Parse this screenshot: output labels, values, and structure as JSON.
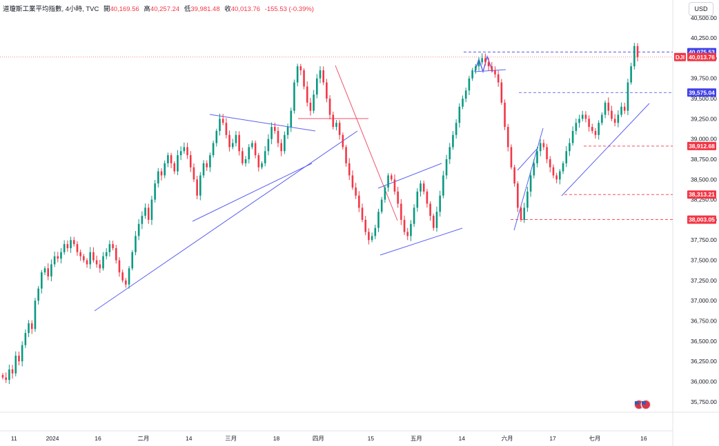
{
  "header": {
    "title": "道瓊斯工業平均指數, 4小時, TVC",
    "open_label": "開",
    "open": "40,169.56",
    "high_label": "高",
    "high": "40,257.24",
    "low_label": "低",
    "low": "39,981.48",
    "close_label": "收",
    "close": "40,013.76",
    "change": "-155.53 (-0.39%)"
  },
  "currency": "USD",
  "symbol_tag": "DJI",
  "colors": {
    "up": "#089981",
    "down": "#f23645",
    "trend_blue": "#5b5ff0",
    "trend_red": "#f2506a",
    "price_box_blue": "#4040e8",
    "price_box_red": "#f23645"
  },
  "chart_data": {
    "type": "candlestick",
    "yticks": [
      35750,
      36000,
      36250,
      36500,
      36750,
      37000,
      37250,
      37500,
      37750,
      38000,
      38250,
      38500,
      38750,
      39000,
      39250,
      39500,
      39750,
      40000,
      40250,
      40500
    ],
    "ytick_labels": [
      "35,750.00",
      "36,000.00",
      "36,250.00",
      "36,500.00",
      "36,750.00",
      "37,000.00",
      "37,250.00",
      "37,500.00",
      "37,750.00",
      "38,000.00",
      "38,250.00",
      "38,500.00",
      "38,750.00",
      "39,000.00",
      "39,250.00",
      "39,500.00",
      "39,750.00",
      "40,000.00",
      "40,250.00",
      "40,500.00"
    ],
    "ylim": [
      35620,
      40720
    ],
    "xtick_labels": [
      "11",
      "2024",
      "16",
      "二月",
      "14",
      "三月",
      "18",
      "四月",
      "15",
      "五月",
      "14",
      "六月",
      "17",
      "七月",
      "16"
    ],
    "xtick_positions": [
      0.04,
      0.15,
      0.28,
      0.41,
      0.54,
      0.66,
      0.79,
      0.91,
      1.06,
      1.19,
      1.32,
      1.45,
      1.58,
      1.7,
      1.84
    ],
    "price_labels": [
      {
        "value": 40075.53,
        "label": "40,075.53",
        "style": "blue"
      },
      {
        "value": 40013.76,
        "label": "40,013.76",
        "style": "red"
      },
      {
        "value": 39575.04,
        "label": "39,575.04",
        "style": "blue"
      },
      {
        "value": 38912.68,
        "label": "38,912.68",
        "style": "red"
      },
      {
        "value": 38313.21,
        "label": "38,313.21",
        "style": "red"
      },
      {
        "value": 38003.05,
        "label": "38,003.05",
        "style": "red"
      }
    ],
    "closes": [
      36050,
      36020,
      36150,
      36100,
      36320,
      36250,
      36450,
      36600,
      36720,
      36650,
      37000,
      37150,
      37350,
      37400,
      37300,
      37450,
      37550,
      37520,
      37600,
      37700,
      37650,
      37750,
      37700,
      37600,
      37550,
      37500,
      37450,
      37600,
      37500,
      37450,
      37400,
      37550,
      37600,
      37700,
      37650,
      37500,
      37350,
      37250,
      37200,
      37400,
      37600,
      37800,
      37950,
      38050,
      38150,
      38000,
      38250,
      38450,
      38600,
      38550,
      38700,
      38800,
      38700,
      38600,
      38800,
      38850,
      38900,
      38800,
      38650,
      38500,
      38300,
      38550,
      38700,
      38650,
      38800,
      38950,
      39100,
      39250,
      39200,
      39050,
      38900,
      38950,
      39050,
      38850,
      38700,
      38750,
      38900,
      38950,
      38800,
      38650,
      38700,
      38850,
      39000,
      39150,
      39100,
      38950,
      38850,
      39050,
      39150,
      39350,
      39700,
      39900,
      39850,
      39650,
      39450,
      39350,
      39550,
      39750,
      39850,
      39700,
      39500,
      39300,
      39150,
      39200,
      39050,
      38900,
      38700,
      38550,
      38400,
      38300,
      38150,
      38000,
      37850,
      37750,
      37800,
      37900,
      38100,
      38250,
      38400,
      38550,
      38500,
      38350,
      38200,
      38000,
      37850,
      37800,
      37950,
      38150,
      38350,
      38450,
      38350,
      38200,
      38050,
      37900,
      38100,
      38300,
      38550,
      38750,
      38900,
      39050,
      39200,
      39400,
      39500,
      39600,
      39750,
      39850,
      39900,
      39950,
      40000,
      39950,
      39900,
      39850,
      39800,
      39700,
      39450,
      39150,
      38900,
      38650,
      38450,
      38150,
      38000,
      38150,
      38350,
      38550,
      38700,
      38850,
      38950,
      38900,
      38750,
      38650,
      38550,
      38500,
      38600,
      38700,
      38850,
      38950,
      39100,
      39200,
      39250,
      39300,
      39250,
      39150,
      39100,
      39050,
      39200,
      39300,
      39450,
      39350,
      39250,
      39200,
      39300,
      39400,
      39350,
      39700,
      39900,
      40150,
      40014
    ]
  }
}
